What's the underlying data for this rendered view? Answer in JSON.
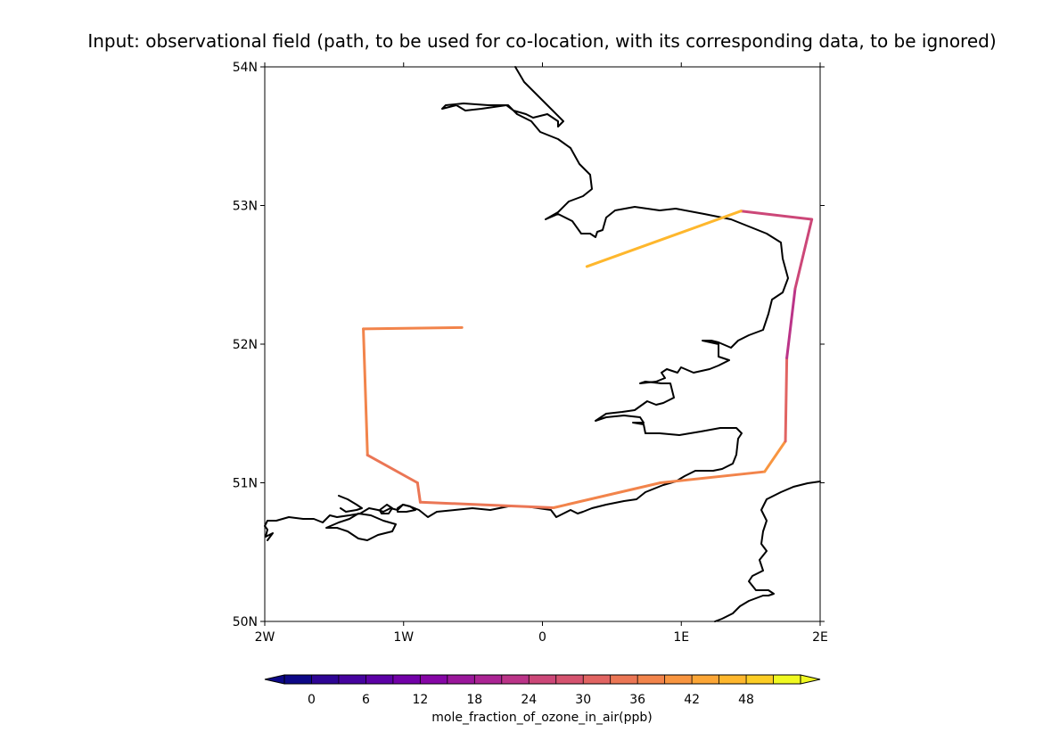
{
  "title": "Input: observational field (path, to be used for co-location, with its corresponding data, to be ignored)",
  "map": {
    "lon_range": [
      -2,
      2
    ],
    "lat_range": [
      50,
      54
    ],
    "lon_ticks": [
      {
        "value": -2,
        "label": "2W"
      },
      {
        "value": -1,
        "label": "1W"
      },
      {
        "value": 0,
        "label": "0"
      },
      {
        "value": 1,
        "label": "1E"
      },
      {
        "value": 2,
        "label": "2E"
      }
    ],
    "lat_ticks": [
      {
        "value": 50,
        "label": "50N"
      },
      {
        "value": 51,
        "label": "51N"
      },
      {
        "value": 52,
        "label": "52N"
      },
      {
        "value": 53,
        "label": "53N"
      },
      {
        "value": 54,
        "label": "54N"
      }
    ],
    "coastline_color": "#000000"
  },
  "colorbar": {
    "label": "mole_fraction_of_ozone_in_air(ppb)",
    "min": -3,
    "max": 54,
    "step": 3,
    "tick_values": [
      0,
      6,
      12,
      18,
      24,
      30,
      36,
      42,
      48
    ],
    "tick_labels": [
      "0",
      "6",
      "12",
      "18",
      "24",
      "30",
      "36",
      "42",
      "48"
    ],
    "colors": [
      "#0d0887",
      "#2e0595",
      "#46039f",
      "#5c01a6",
      "#7201a8",
      "#8606a6",
      "#9a179b",
      "#ab2494",
      "#bb3488",
      "#cc4778",
      "#d5536f",
      "#e16462",
      "#eb7655",
      "#f2844b",
      "#f89540",
      "#fca636",
      "#feb72d",
      "#fccd25",
      "#f0f921"
    ],
    "extend": "both"
  },
  "chart_data": {
    "type": "map-track",
    "track_segments": [
      {
        "from": [
          -0.58,
          52.12
        ],
        "to": [
          -1.29,
          52.11
        ],
        "value": 36
      },
      {
        "from": [
          -1.29,
          52.11
        ],
        "to": [
          -1.26,
          51.2
        ],
        "value": 37
      },
      {
        "from": [
          -1.26,
          51.2
        ],
        "to": [
          -0.9,
          51.0
        ],
        "value": 33
      },
      {
        "from": [
          -0.9,
          51.0
        ],
        "to": [
          -0.88,
          50.86
        ],
        "value": 34
      },
      {
        "from": [
          -0.88,
          50.86
        ],
        "to": [
          0.08,
          50.82
        ],
        "value": 33
      },
      {
        "from": [
          0.08,
          50.82
        ],
        "to": [
          0.85,
          51.0
        ],
        "value": 36
      },
      {
        "from": [
          0.85,
          51.0
        ],
        "to": [
          1.6,
          51.08
        ],
        "value": 37
      },
      {
        "from": [
          1.6,
          51.08
        ],
        "to": [
          1.75,
          51.3
        ],
        "value": 39
      },
      {
        "from": [
          1.75,
          51.3
        ],
        "to": [
          1.76,
          51.9
        ],
        "value": 30
      },
      {
        "from": [
          1.76,
          51.9
        ],
        "to": [
          1.82,
          52.4
        ],
        "value": 22
      },
      {
        "from": [
          1.82,
          52.4
        ],
        "to": [
          1.94,
          52.9
        ],
        "value": 26
      },
      {
        "from": [
          1.94,
          52.9
        ],
        "to": [
          1.43,
          52.96
        ],
        "value": 24
      },
      {
        "from": [
          1.43,
          52.96
        ],
        "to": [
          0.32,
          52.56
        ],
        "value": 45
      }
    ]
  }
}
